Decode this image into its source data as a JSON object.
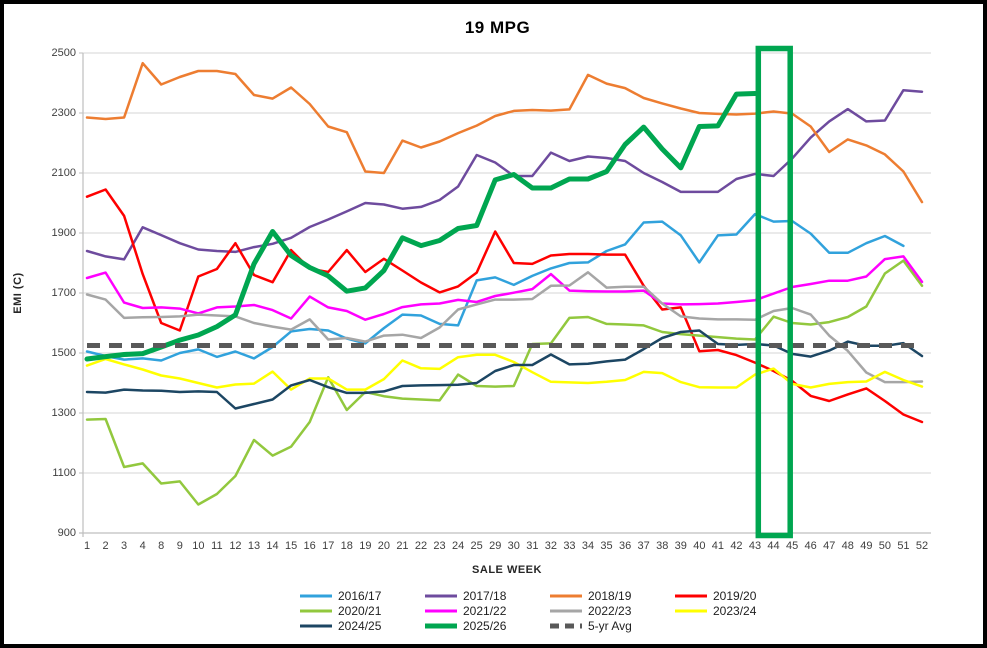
{
  "window": {
    "background_color": "#FFFFFF",
    "border_color": "#000000"
  },
  "chart": {
    "title": "19 MPG",
    "x_axis_title": "SALE WEEK",
    "y_axis_title": "EMI (C)"
  },
  "chart_data": {
    "type": "line",
    "title": "19 MPG",
    "xlabel": "SALE WEEK",
    "ylabel": "EMI (C)",
    "ylim": [
      900,
      2500
    ],
    "y_ticks": [
      2500,
      2300,
      2100,
      1900,
      1700,
      1500,
      1300,
      1100,
      900
    ],
    "grid": true,
    "legend_position": "bottom",
    "colors": {
      "gridline": "#D6D6D6",
      "axis_line": "#BFBFBF",
      "tick_label": "#3F3F3F",
      "highlight": "#00A650"
    },
    "categories": [
      "1",
      "2",
      "3",
      "4",
      "8",
      "9",
      "10",
      "11",
      "12",
      "13",
      "14",
      "15",
      "16",
      "17",
      "18",
      "19",
      "20",
      "21",
      "22",
      "23",
      "24",
      "25",
      "29",
      "30",
      "31",
      "32",
      "33",
      "34",
      "35",
      "36",
      "37",
      "38",
      "39",
      "40",
      "41",
      "42",
      "43",
      "44",
      "45",
      "46",
      "47",
      "48",
      "49",
      "50",
      "51",
      "52"
    ],
    "series": [
      {
        "name": "2016/17",
        "color": "#31A2DC",
        "width": 2.5,
        "values": [
          1505,
          1490,
          1478,
          1482,
          1475,
          1500,
          1512,
          1487,
          1505,
          1482,
          1520,
          1572,
          1580,
          1575,
          1548,
          1532,
          1583,
          1628,
          1625,
          1597,
          1592,
          1742,
          1752,
          1727,
          1757,
          1782,
          1800,
          1802,
          1840,
          1862,
          1935,
          1938,
          1892,
          1802,
          1892,
          1895,
          1963,
          1938,
          1940,
          1898,
          1834,
          1834,
          1866,
          1890,
          1857,
          null
        ]
      },
      {
        "name": "2017/18",
        "color": "#6E4B9E",
        "width": 2.5,
        "values": [
          1840,
          1822,
          1812,
          1919,
          1893,
          1866,
          1845,
          1840,
          1837,
          1853,
          1864,
          1884,
          1920,
          1945,
          1972,
          2000,
          1995,
          1981,
          1987,
          2010,
          2055,
          2160,
          2135,
          2090,
          2090,
          2168,
          2140,
          2155,
          2150,
          2140,
          2100,
          2070,
          2037,
          2037,
          2037,
          2080,
          2097,
          2090,
          2148,
          2218,
          2272,
          2313,
          2272,
          2275,
          2376,
          2371
        ]
      },
      {
        "name": "2018/19",
        "color": "#ED7D31",
        "width": 2.5,
        "values": [
          2285,
          2280,
          2285,
          2466,
          2395,
          2420,
          2440,
          2440,
          2430,
          2360,
          2348,
          2385,
          2330,
          2255,
          2236,
          2105,
          2100,
          2208,
          2185,
          2205,
          2233,
          2258,
          2290,
          2307,
          2310,
          2308,
          2312,
          2427,
          2398,
          2383,
          2350,
          2332,
          2315,
          2300,
          2297,
          2295,
          2298,
          2305,
          2298,
          2255,
          2170,
          2212,
          2192,
          2162,
          2105,
          2003
        ]
      },
      {
        "name": "2019/20",
        "color": "#FE0000",
        "width": 2.5,
        "values": [
          2021,
          2045,
          1957,
          1763,
          1600,
          1575,
          1755,
          1780,
          1866,
          1760,
          1736,
          1843,
          1781,
          1770,
          1843,
          1770,
          1814,
          1775,
          1735,
          1702,
          1722,
          1768,
          1905,
          1800,
          1797,
          1825,
          1830,
          1830,
          1828,
          1828,
          1724,
          1645,
          1652,
          1506,
          1510,
          1493,
          1468,
          1440,
          1407,
          1357,
          1340,
          1362,
          1382,
          1340,
          1295,
          1270
        ]
      },
      {
        "name": "2020/21",
        "color": "#92C83E",
        "width": 2.5,
        "values": [
          1278,
          1280,
          1120,
          1132,
          1065,
          1072,
          995,
          1030,
          1090,
          1210,
          1158,
          1188,
          1270,
          1419,
          1310,
          1370,
          1356,
          1348,
          1345,
          1342,
          1428,
          1390,
          1388,
          1390,
          1530,
          1532,
          1617,
          1620,
          1597,
          1595,
          1592,
          1570,
          1563,
          1558,
          1553,
          1548,
          1545,
          1621,
          1600,
          1595,
          1603,
          1620,
          1655,
          1765,
          1808,
          1724
        ]
      },
      {
        "name": "2021/22",
        "color": "#FF00FF",
        "width": 2.5,
        "values": [
          1750,
          1768,
          1668,
          1650,
          1652,
          1648,
          1632,
          1652,
          1655,
          1660,
          1643,
          1615,
          1688,
          1652,
          1640,
          1611,
          1630,
          1653,
          1662,
          1665,
          1677,
          1670,
          1690,
          1701,
          1713,
          1763,
          1708,
          1706,
          1705,
          1705,
          1708,
          1665,
          1662,
          1663,
          1665,
          1670,
          1676,
          1698,
          1720,
          1730,
          1741,
          1741,
          1755,
          1813,
          1822,
          1737
        ]
      },
      {
        "name": "2022/23",
        "color": "#A6A6A6",
        "width": 2.5,
        "values": [
          1695,
          1678,
          1617,
          1619,
          1620,
          1622,
          1628,
          1625,
          1622,
          1600,
          1588,
          1578,
          1612,
          1545,
          1550,
          1538,
          1558,
          1561,
          1550,
          1585,
          1645,
          1662,
          1678,
          1678,
          1680,
          1724,
          1725,
          1769,
          1718,
          1721,
          1721,
          1665,
          1622,
          1615,
          1612,
          1612,
          1611,
          1640,
          1650,
          1628,
          1558,
          1507,
          1435,
          1403,
          1403,
          1405
        ]
      },
      {
        "name": "2023/24",
        "color": "#FFFF00",
        "width": 2.5,
        "values": [
          1458,
          1480,
          1462,
          1445,
          1425,
          1415,
          1400,
          1385,
          1395,
          1398,
          1438,
          1378,
          1415,
          1415,
          1378,
          1378,
          1413,
          1475,
          1449,
          1447,
          1486,
          1494,
          1494,
          1470,
          1436,
          1404,
          1402,
          1400,
          1404,
          1410,
          1437,
          1433,
          1403,
          1386,
          1385,
          1385,
          1428,
          1448,
          1397,
          1385,
          1397,
          1403,
          1405,
          1437,
          1410,
          1388
        ]
      },
      {
        "name": "2024/25",
        "color": "#1C4663",
        "width": 2.5,
        "values": [
          1370,
          1368,
          1378,
          1375,
          1374,
          1370,
          1372,
          1370,
          1315,
          1330,
          1345,
          1392,
          1410,
          1386,
          1367,
          1367,
          1372,
          1390,
          1392,
          1393,
          1394,
          1400,
          1440,
          1460,
          1460,
          1495,
          1462,
          1464,
          1472,
          1478,
          1513,
          1550,
          1570,
          1575,
          1530,
          1527,
          1530,
          1525,
          1497,
          1488,
          1508,
          1538,
          1524,
          1524,
          1533,
          1490
        ]
      },
      {
        "name": "2025/26",
        "color": "#00A650",
        "width": 5,
        "values": [
          1480,
          1488,
          1495,
          1498,
          1520,
          1543,
          1560,
          1588,
          1627,
          1797,
          1905,
          1825,
          1785,
          1757,
          1706,
          1717,
          1775,
          1884,
          1858,
          1875,
          1915,
          1925,
          2077,
          2095,
          2050,
          2050,
          2080,
          2080,
          2105,
          2195,
          2253,
          2180,
          2117,
          2255,
          2257,
          2363,
          2365,
          null,
          null,
          null,
          null,
          null,
          null,
          null,
          null,
          null
        ]
      },
      {
        "name": "5-yr Avg",
        "color": "#595959",
        "width": 5,
        "dash": "13 9",
        "values": [
          1525,
          1525,
          1525,
          1525,
          1525,
          1525,
          1525,
          1525,
          1525,
          1525,
          1525,
          1525,
          1525,
          1525,
          1525,
          1525,
          1525,
          1525,
          1525,
          1525,
          1525,
          1525,
          1525,
          1525,
          1525,
          1525,
          1525,
          1525,
          1525,
          1525,
          1525,
          1525,
          1525,
          1525,
          1525,
          1525,
          1525,
          1525,
          1525,
          1525,
          1525,
          1525,
          1525,
          1525,
          1525,
          1525
        ]
      }
    ],
    "annotations": {
      "highlight_week": "44",
      "highlight_color": "#00A650"
    }
  }
}
